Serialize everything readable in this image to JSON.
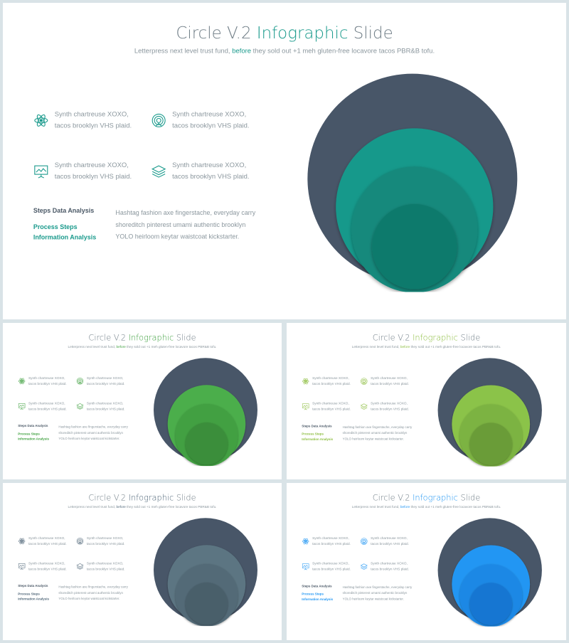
{
  "slide": {
    "title_part1": "Circle V.2",
    "title_accent": "Infographic",
    "title_part2": "Slide",
    "subtitle_part1": "Letterpress next level trust fund,",
    "subtitle_accent": "before",
    "subtitle_part2": "they sold out +1 meh gluten-free locavore tacos PBR&B tofu.",
    "features": [
      {
        "icon": "atom-icon",
        "line1": "Synth chartreuse XOXO,",
        "line2": "tacos brooklyn VHS plaid."
      },
      {
        "icon": "target-icon",
        "line1": "Synth chartreuse XOXO,",
        "line2": "tacos brooklyn VHS plaid."
      },
      {
        "icon": "presentation-board-icon",
        "line1": "Synth chartreuse XOXO,",
        "line2": "tacos brooklyn VHS plaid."
      },
      {
        "icon": "layers-icon",
        "line1": "Synth chartreuse XOXO,",
        "line2": "tacos brooklyn VHS plaid."
      }
    ],
    "steps_title": "Steps Data Analysis",
    "steps_items": [
      "Process Steps",
      "Information Analysis"
    ],
    "steps_desc": [
      "Hashtag fashion axe fingerstache, everyday carry",
      "shoreditch pinterest umami authentic brooklyn",
      "YOLO heirloom keytar waistcoat kickstarter."
    ]
  },
  "variants": [
    {
      "id": "teal",
      "accent": "#1a9a8c",
      "outer": "#485668",
      "c1": "#17998b",
      "c2": "#13897b",
      "c3": "#107a6c"
    },
    {
      "id": "green",
      "accent": "#3fa03f",
      "outer": "#485668",
      "c1": "#4cae4c",
      "c2": "#43a043",
      "c3": "#3a8e3a"
    },
    {
      "id": "lime",
      "accent": "#8cbd3f",
      "outer": "#485668",
      "c1": "#8bc34a",
      "c2": "#7cb342",
      "c3": "#6a9c39"
    },
    {
      "id": "slate",
      "accent": "#4f6678",
      "outer": "#485668",
      "c1": "#5b7582",
      "c2": "#526a77",
      "c3": "#4a5e6b"
    },
    {
      "id": "blue",
      "accent": "#2196f3",
      "outer": "#485668",
      "c1": "#2196f3",
      "c2": "#1e88e5",
      "c3": "#1976d2"
    }
  ]
}
